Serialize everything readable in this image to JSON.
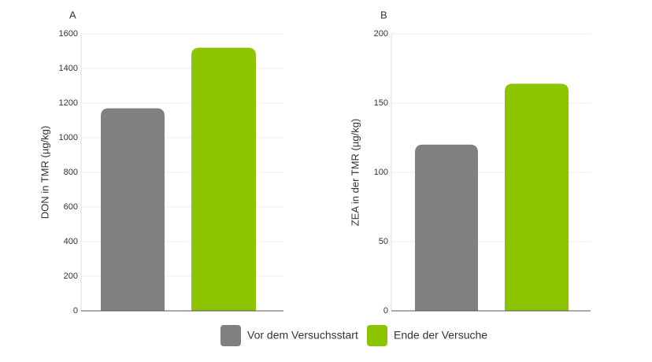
{
  "chart_data": [
    {
      "type": "bar",
      "label": "A",
      "ylabel": "DON in TMR (µg/kg)",
      "values": [
        1170,
        1520
      ],
      "ylim": [
        0,
        1600
      ],
      "yticks": [
        0,
        200,
        400,
        600,
        800,
        1000,
        1200,
        1400,
        1600
      ],
      "grid": true
    },
    {
      "type": "bar",
      "label": "B",
      "ylabel": "ZEA in der TMR (µg/kg)",
      "values": [
        120,
        164
      ],
      "ylim": [
        0,
        200
      ],
      "yticks": [
        0,
        50,
        100,
        150,
        200
      ],
      "grid": true
    }
  ],
  "legend": [
    {
      "name": "Vor dem Versuchsstart",
      "color": "#808080"
    },
    {
      "name": "Ende der Versuche",
      "color": "#8cc400"
    }
  ]
}
